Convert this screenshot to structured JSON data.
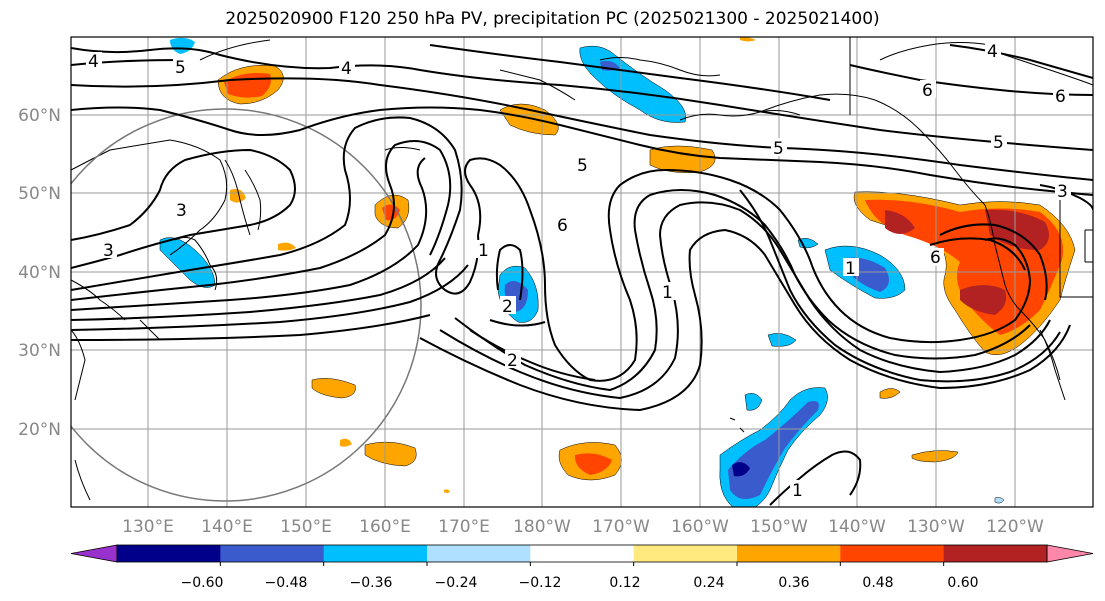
{
  "title": "2025020900 F120 250 hPa PV, precipitation PC (2025021300 - 2025021400)",
  "map": {
    "lat_labels": [
      "60°N",
      "50°N",
      "40°N",
      "30°N",
      "20°N"
    ],
    "lon_labels": [
      "130°E",
      "140°E",
      "150°E",
      "160°E",
      "170°E",
      "180°W",
      "170°W",
      "160°W",
      "150°W",
      "140°W",
      "130°W",
      "120°W"
    ],
    "contour_labels": [
      "4",
      "5",
      "4",
      "3",
      "5",
      "4",
      "6",
      "6",
      "5",
      "5",
      "3",
      "3",
      "1",
      "2",
      "6",
      "1",
      "2",
      "1",
      "6",
      "1"
    ]
  },
  "colorbar": {
    "ticks": [
      "−0.60",
      "−0.48",
      "−0.36",
      "−0.24",
      "−0.12",
      "0.12",
      "0.24",
      "0.36",
      "0.48",
      "0.60"
    ],
    "colors": [
      "#9932cc",
      "#00008b",
      "#3a5bcc",
      "#00bfff",
      "#b0e0ff",
      "#ffffff",
      "#ffea80",
      "#ffa500",
      "#ff4500",
      "#b22222",
      "#ff88aa"
    ]
  }
}
